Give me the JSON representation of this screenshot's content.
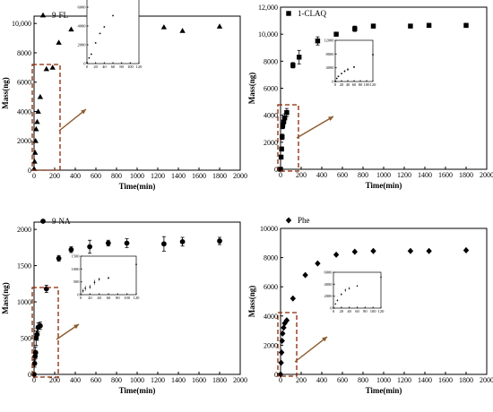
{
  "chart_data": [
    {
      "type": "scatter",
      "series": [
        {
          "name": "9-FL",
          "marker": "triangle",
          "x": [
            0,
            5,
            10,
            15,
            20,
            30,
            40,
            60,
            120,
            180,
            240,
            360,
            720,
            900,
            1260,
            1440,
            1800
          ],
          "y": [
            100,
            600,
            1200,
            2000,
            2800,
            3300,
            4000,
            5000,
            6900,
            7000,
            8700,
            9600,
            9950,
            9700,
            9750,
            9500,
            9800
          ]
        }
      ],
      "xlabel": "Time(min)",
      "ylabel": "Mass(ng)",
      "xlim": [
        0,
        2000
      ],
      "ylim": [
        0,
        10500
      ],
      "xticks": [
        0,
        200,
        400,
        600,
        800,
        1000,
        1200,
        1400,
        1600,
        1800,
        2000
      ],
      "yticks": [
        0,
        2000,
        4000,
        6000,
        8000,
        10000
      ],
      "ytick_labels": [
        "0",
        "2000",
        "4000",
        "6000",
        "8000",
        "10,000"
      ],
      "inset": {
        "x": [
          0,
          5,
          10,
          20,
          30,
          40,
          60,
          120
        ],
        "y": [
          100,
          600,
          1000,
          2200,
          3200,
          3900,
          5100,
          6900
        ],
        "xlim": [
          0,
          120
        ],
        "ylim": [
          0,
          8000
        ],
        "xticks": [
          0,
          20,
          40,
          60,
          80,
          100,
          120
        ],
        "yticks": [
          0,
          2000,
          4000,
          6000,
          8000
        ]
      }
    },
    {
      "type": "scatter",
      "series": [
        {
          "name": "1-CLAQ",
          "marker": "square",
          "x": [
            0,
            5,
            10,
            15,
            20,
            30,
            40,
            60,
            120,
            180,
            360,
            540,
            720,
            900,
            1260,
            1440,
            1800
          ],
          "y": [
            0,
            900,
            1500,
            2400,
            3200,
            3500,
            3800,
            4200,
            7700,
            8300,
            9500,
            10000,
            10400,
            10600,
            10600,
            10650,
            10650
          ],
          "err": [
            0,
            100,
            150,
            200,
            200,
            300,
            300,
            300,
            200,
            500,
            300,
            150,
            200,
            150,
            100,
            150,
            150
          ]
        }
      ],
      "xlabel": "Time(min)",
      "ylabel": "Mass(ng)",
      "xlim": [
        0,
        2000
      ],
      "ylim": [
        0,
        12000
      ],
      "xticks": [
        0,
        200,
        400,
        600,
        800,
        1000,
        1200,
        1400,
        1600,
        1800,
        2000
      ],
      "yticks": [
        0,
        2000,
        4000,
        6000,
        8000,
        10000,
        12000
      ],
      "ytick_labels": [
        "0",
        "2000",
        "4000",
        "6000",
        "8000",
        "10,000",
        "12,000"
      ],
      "inset": {
        "x": [
          0,
          5,
          10,
          20,
          30,
          40,
          60,
          120
        ],
        "y": [
          0,
          900,
          1500,
          2300,
          3000,
          3500,
          4200,
          7800
        ],
        "err": [
          0,
          100,
          200,
          200,
          300,
          400,
          300,
          200
        ],
        "xlim": [
          0,
          120
        ],
        "ylim": [
          0,
          12000
        ],
        "xticks": [
          0,
          20,
          40,
          60,
          80,
          100,
          120
        ],
        "yticks": [
          0,
          4000,
          8000,
          12000
        ]
      }
    },
    {
      "type": "scatter",
      "series": [
        {
          "name": "9-NA",
          "marker": "circle",
          "x": [
            0,
            5,
            10,
            15,
            20,
            30,
            40,
            60,
            120,
            240,
            360,
            540,
            720,
            900,
            1260,
            1440,
            1800
          ],
          "y": [
            0,
            150,
            250,
            300,
            500,
            550,
            650,
            670,
            1180,
            1600,
            1720,
            1760,
            1810,
            1810,
            1800,
            1830,
            1840
          ],
          "err": [
            0,
            50,
            80,
            80,
            100,
            80,
            60,
            50,
            50,
            40,
            40,
            90,
            40,
            60,
            100,
            60,
            50
          ]
        }
      ],
      "xlabel": "Time(min)",
      "ylabel": "Mass(ng)",
      "xlim": [
        0,
        2000
      ],
      "ylim": [
        0,
        2100
      ],
      "xticks": [
        0,
        200,
        400,
        600,
        800,
        1000,
        1200,
        1400,
        1600,
        1800,
        2000
      ],
      "yticks": [
        0,
        500,
        1000,
        1500,
        2000
      ],
      "ytick_labels": [
        "0",
        "500",
        "1000",
        "1500",
        "2000"
      ],
      "inset": {
        "x": [
          0,
          5,
          10,
          20,
          30,
          40,
          60,
          120
        ],
        "y": [
          0,
          150,
          250,
          300,
          480,
          600,
          650,
          1180
        ],
        "err": [
          0,
          80,
          100,
          80,
          100,
          60,
          50,
          30
        ],
        "xlim": [
          0,
          120
        ],
        "ylim": [
          0,
          1500
        ],
        "xticks": [
          0,
          20,
          40,
          60,
          80,
          100,
          120
        ],
        "yticks": [
          0,
          500,
          1000,
          1500
        ]
      }
    },
    {
      "type": "scatter",
      "series": [
        {
          "name": "Phe",
          "marker": "diamond",
          "x": [
            0,
            5,
            10,
            15,
            20,
            30,
            40,
            60,
            120,
            240,
            360,
            540,
            720,
            900,
            1260,
            1440,
            1800
          ],
          "y": [
            0,
            800,
            1500,
            2300,
            2800,
            3200,
            3500,
            3700,
            5200,
            6800,
            7600,
            8200,
            8400,
            8450,
            8450,
            8450,
            8500
          ]
        }
      ],
      "xlabel": "Time(min)",
      "ylabel": "Mass(ng)",
      "xlim": [
        0,
        2000
      ],
      "ylim": [
        0,
        10000
      ],
      "xticks": [
        0,
        200,
        400,
        600,
        800,
        1000,
        1200,
        1400,
        1600,
        1800,
        2000
      ],
      "yticks": [
        0,
        2000,
        4000,
        6000,
        8000,
        10000
      ],
      "ytick_labels": [
        "0",
        "2000",
        "4000",
        "6000",
        "8000",
        "10000"
      ],
      "inset": {
        "x": [
          0,
          5,
          10,
          20,
          30,
          40,
          60,
          120
        ],
        "y": [
          0,
          700,
          1300,
          2300,
          3000,
          3300,
          3700,
          5200
        ],
        "err": [
          0,
          100,
          150,
          200,
          250,
          200,
          100,
          100
        ],
        "xlim": [
          0,
          120
        ],
        "ylim": [
          0,
          6000
        ],
        "xticks": [
          0,
          20,
          40,
          60,
          80,
          100,
          120
        ],
        "yticks": [
          0,
          2000,
          4000,
          6000
        ]
      }
    }
  ]
}
